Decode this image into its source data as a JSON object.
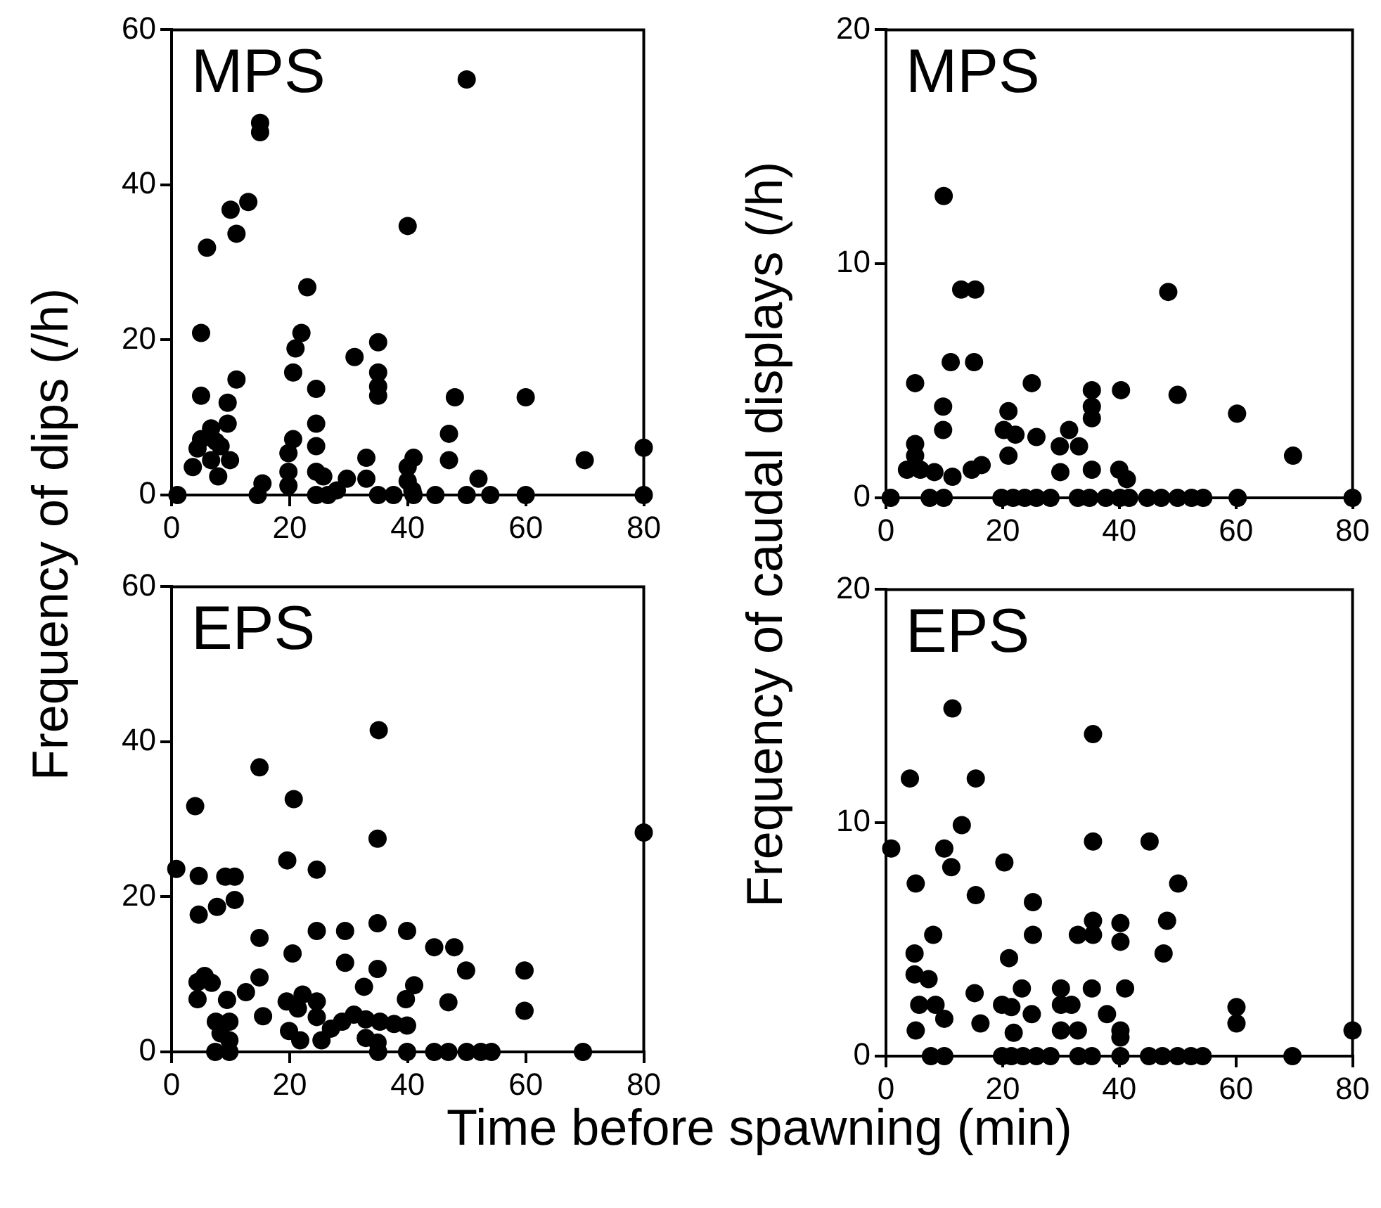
{
  "chart_data": [
    {
      "type": "scatter",
      "title": "MPS",
      "ylabel": "Frequency of dips (/h)",
      "color": "#000000",
      "marker": "circle",
      "grid": false,
      "xlim": [
        0,
        80
      ],
      "xticks": [
        0,
        20,
        40,
        60,
        80
      ],
      "ylim": [
        0,
        60
      ],
      "yticks": [
        0,
        20,
        40,
        60
      ],
      "x": [
        1,
        50,
        15,
        15,
        13,
        10,
        11,
        6,
        40,
        23,
        5,
        22,
        21,
        31,
        35,
        35,
        35,
        35,
        20.6,
        11,
        24.5,
        5,
        48,
        60,
        9.5,
        9.5,
        6.7,
        7.5,
        5,
        4.4,
        3.6,
        6.7,
        9.9,
        7.9,
        8.3,
        24.5,
        24.5,
        24.5,
        25.7,
        24.5,
        20.6,
        19.8,
        19.8,
        19.8,
        15.4,
        14.6,
        33,
        33,
        29.7,
        28,
        26.5,
        47,
        47,
        41,
        40,
        40,
        40.8,
        35,
        37.6,
        41,
        44.7,
        50,
        54,
        60,
        80,
        52,
        70,
        80
      ],
      "values": [
        0,
        53.6,
        48,
        46.8,
        37.8,
        36.8,
        33.7,
        31.9,
        34.7,
        26.8,
        20.9,
        20.9,
        18.9,
        17.8,
        19.7,
        15.8,
        14,
        12.8,
        15.8,
        14.9,
        13.7,
        12.8,
        12.6,
        12.6,
        11.9,
        9.2,
        8.6,
        6.9,
        7.2,
        6,
        3.6,
        4.5,
        4.5,
        2.4,
        6.3,
        9.2,
        6.3,
        3,
        2.4,
        0,
        7.2,
        5.4,
        3,
        1.2,
        1.5,
        0,
        4.8,
        2.1,
        2.1,
        0.6,
        0,
        7.9,
        4.5,
        4.8,
        3.6,
        1.8,
        0.6,
        0,
        0,
        0,
        0,
        0,
        0,
        0,
        0,
        2.1,
        4.5,
        6.1
      ]
    },
    {
      "type": "scatter",
      "title": "MPS",
      "ylabel": "Frequency of caudal displays (/h)",
      "color": "#000000",
      "marker": "circle",
      "grid": false,
      "xlim": [
        0,
        80
      ],
      "xticks": [
        0,
        20,
        40,
        60,
        80
      ],
      "ylim": [
        0,
        20
      ],
      "yticks": [
        0,
        10,
        20
      ],
      "x": [
        9.9,
        12.9,
        15.3,
        48.4,
        11.1,
        15.1,
        5,
        25,
        35.3,
        40.3,
        50,
        35.3,
        35.3,
        60.2,
        9.8,
        9.8,
        21,
        20.2,
        22.2,
        21,
        25.8,
        31.4,
        29.8,
        33.1,
        29.9,
        35.3,
        40,
        41.3,
        5,
        5,
        3.6,
        5.9,
        7.5,
        8.3,
        11.4,
        14.7,
        16.4,
        69.8,
        0.8,
        7.5,
        9.9,
        19.8,
        21.8,
        23.8,
        25.8,
        28.2,
        32.9,
        34.9,
        37.7,
        40.1,
        41.7,
        44.8,
        47.2,
        50,
        52.4,
        54.4,
        60.3,
        80
      ],
      "values": [
        12.9,
        8.9,
        8.9,
        8.8,
        5.8,
        5.8,
        4.9,
        4.9,
        4.6,
        4.6,
        4.4,
        3.9,
        3.4,
        3.6,
        3.9,
        2.9,
        3.7,
        2.9,
        2.7,
        1.8,
        2.6,
        2.9,
        2.2,
        2.2,
        1.1,
        1.2,
        1.2,
        0.8,
        2.3,
        1.8,
        1.2,
        1.2,
        null,
        1.1,
        0.9,
        1.2,
        1.4,
        1.8,
        0,
        0,
        0,
        0,
        0,
        0,
        0,
        0,
        0,
        0,
        0,
        0,
        0,
        0,
        0,
        0,
        0,
        0,
        0,
        0
      ]
    },
    {
      "type": "scatter",
      "title": "EPS",
      "xlabel": "Time before spawning (min)",
      "color": "#000000",
      "marker": "circle",
      "grid": false,
      "xlim": [
        0,
        80
      ],
      "xticks": [
        0,
        20,
        40,
        60,
        80
      ],
      "ylim": [
        0,
        60
      ],
      "yticks": [
        0,
        20,
        40,
        60
      ],
      "x": [
        35.1,
        14.9,
        4,
        20.7,
        80,
        34.9,
        0.8,
        19.6,
        24.6,
        4.6,
        9.1,
        10.7,
        10.7,
        7.7,
        4.6,
        34.9,
        24.6,
        29.4,
        39.9,
        14.9,
        44.5,
        47.9,
        20.5,
        29.4,
        34.9,
        49.9,
        59.8,
        14.9,
        5.6,
        4.4,
        6.8,
        4.4,
        9.4,
        12.6,
        32.6,
        41.1,
        39.7,
        46.9,
        59.8,
        15.5,
        19.5,
        22.2,
        24.6,
        21.4,
        24.6,
        19.9,
        21.8,
        25.4,
        27,
        28.9,
        30.9,
        32.9,
        35.3,
        37.7,
        39.9,
        32.9,
        34.9,
        7.5,
        9.8,
        8.3,
        9.8,
        7.4,
        9.8,
        35,
        39.9,
        44.5,
        46.9,
        50,
        52.4,
        54.2,
        69.7
      ],
      "values": [
        41.5,
        36.7,
        31.7,
        32.6,
        28.3,
        27.5,
        23.6,
        24.7,
        23.5,
        22.7,
        22.6,
        22.6,
        19.6,
        18.7,
        17.7,
        16.6,
        15.6,
        15.6,
        15.6,
        14.7,
        13.5,
        13.5,
        12.7,
        11.5,
        10.7,
        10.5,
        10.5,
        9.6,
        9.8,
        9,
        8.9,
        6.8,
        6.7,
        7.7,
        8.4,
        8.6,
        6.8,
        6.4,
        5.3,
        4.6,
        6.5,
        7.4,
        6.5,
        5.6,
        4.5,
        2.7,
        1.5,
        1.5,
        3,
        3.9,
        4.8,
        4.2,
        3.9,
        3.6,
        3.4,
        1.8,
        1.2,
        3.9,
        3.9,
        2.4,
        1.5,
        0,
        0,
        0,
        0,
        0,
        0,
        0,
        0,
        0,
        0
      ]
    },
    {
      "type": "scatter",
      "title": "EPS",
      "color": "#000000",
      "marker": "circle",
      "grid": false,
      "xlim": [
        0,
        80
      ],
      "xticks": [
        0,
        20,
        40,
        60,
        80
      ],
      "ylim": [
        0,
        20
      ],
      "yticks": [
        0,
        10,
        20
      ],
      "x": [
        11.4,
        35.5,
        4.1,
        15.4,
        13,
        0.9,
        10,
        11.2,
        35.5,
        45.2,
        20.3,
        5.1,
        50.1,
        15.4,
        25.2,
        35.5,
        32.9,
        35.5,
        40.2,
        40.2,
        48.2,
        25.2,
        8.1,
        4.9,
        47.6,
        21.1,
        4.9,
        7.3,
        15.2,
        23.3,
        30,
        35.3,
        41,
        5.7,
        8.5,
        10,
        19.9,
        21.5,
        30,
        31.8,
        25,
        37.9,
        60.1,
        60.1,
        16.2,
        5.1,
        21.9,
        30,
        32.9,
        40.2,
        40.2,
        80,
        7.7,
        10,
        19.9,
        21.5,
        23.5,
        25.8,
        28.2,
        33,
        35.3,
        40.2,
        45.1,
        47.4,
        50,
        52.3,
        54.3,
        69.7
      ],
      "values": [
        14.9,
        13.8,
        11.9,
        11.9,
        9.9,
        8.9,
        8.9,
        8.1,
        9.2,
        9.2,
        8.3,
        7.4,
        7.4,
        6.9,
        6.6,
        5.8,
        5.2,
        5.2,
        5.7,
        4.9,
        5.8,
        5.2,
        5.2,
        4.4,
        4.4,
        4.2,
        3.5,
        3.3,
        2.7,
        2.9,
        2.9,
        2.9,
        2.9,
        2.2,
        2.2,
        1.6,
        2.2,
        2.1,
        2.2,
        2.2,
        1.8,
        1.8,
        2.1,
        1.4,
        1.4,
        1.1,
        1,
        1.1,
        1.1,
        1.1,
        0.8,
        1.1,
        0,
        0,
        0,
        0,
        0,
        0,
        0,
        0,
        0,
        0,
        0,
        0,
        0,
        0,
        0,
        0
      ]
    }
  ]
}
